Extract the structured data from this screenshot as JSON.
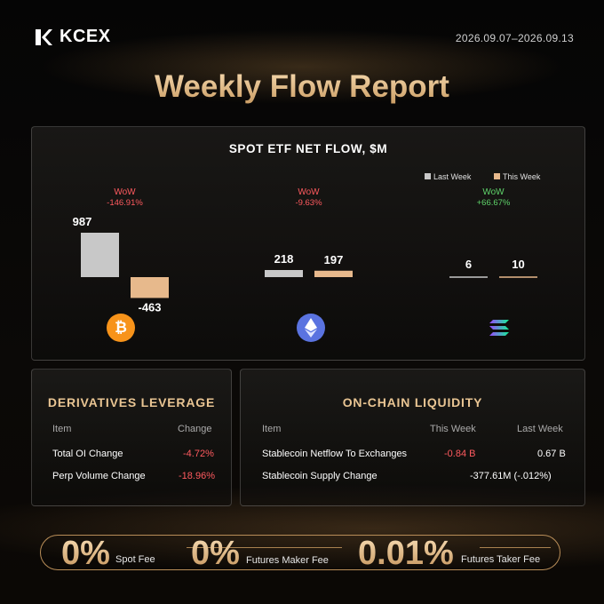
{
  "brand": {
    "name": "KCEX"
  },
  "date_range": "2026.09.07–2026.09.13",
  "headline": "Weekly Flow Report",
  "etf_panel": {
    "title": "SPOT ETF NET FLOW, $M",
    "legend": {
      "last_week": "Last Week",
      "this_week": "This Week"
    },
    "wow_label": "WoW"
  },
  "chart_data": {
    "type": "bar",
    "title": "SPOT ETF NET FLOW, $M",
    "categories": [
      "BTC",
      "ETH",
      "SOL"
    ],
    "category_icons": [
      "bitcoin-icon",
      "ethereum-icon",
      "solana-icon"
    ],
    "series": [
      {
        "name": "Last Week",
        "values": [
          987,
          218,
          6
        ],
        "color": "#c8c8c8"
      },
      {
        "name": "This Week",
        "values": [
          -463,
          197,
          10
        ],
        "color": "#e7b98c"
      }
    ],
    "value_labels": {
      "last_week": [
        "987",
        "218",
        "6"
      ],
      "this_week": [
        "-463",
        "197",
        "10"
      ]
    },
    "wow_change": [
      "-146.91%",
      "-9.63%",
      "+66.67%"
    ],
    "wow_colors": [
      "#ff5a5f",
      "#ff5a5f",
      "#5fd46a"
    ],
    "scale_note": "bars scaled independently per coin",
    "legend_position": "top-right"
  },
  "derivatives": {
    "title": "DERIVATIVES LEVERAGE",
    "headers": {
      "item": "Item",
      "change": "Change"
    },
    "rows": [
      {
        "item": "Total OI Change",
        "change": "-4.72%"
      },
      {
        "item": "Perp Volume Change",
        "change": "-18.96%"
      }
    ]
  },
  "onchain": {
    "title": "ON-CHAIN LIQUIDITY",
    "headers": {
      "item": "Item",
      "this_week": "This Week",
      "last_week": "Last Week"
    },
    "rows": [
      {
        "item": "Stablecoin Netflow To Exchanges",
        "this_week": "-0.84 B",
        "last_week": "0.67 B"
      },
      {
        "item": "Stablecoin Supply Change",
        "combined": "-377.61M (-.012%)"
      }
    ]
  },
  "fees": [
    {
      "value": "0%",
      "label": "Spot Fee"
    },
    {
      "value": "0%",
      "label": "Futures Maker Fee"
    },
    {
      "value": "0.01%",
      "label": "Futures Taker Fee"
    }
  ],
  "colors": {
    "accent_gold": "#e7c191",
    "negative": "#ff5a5f",
    "positive": "#5fd46a",
    "bar_last_week": "#c8c8c8",
    "bar_this_week": "#e7b98c"
  }
}
